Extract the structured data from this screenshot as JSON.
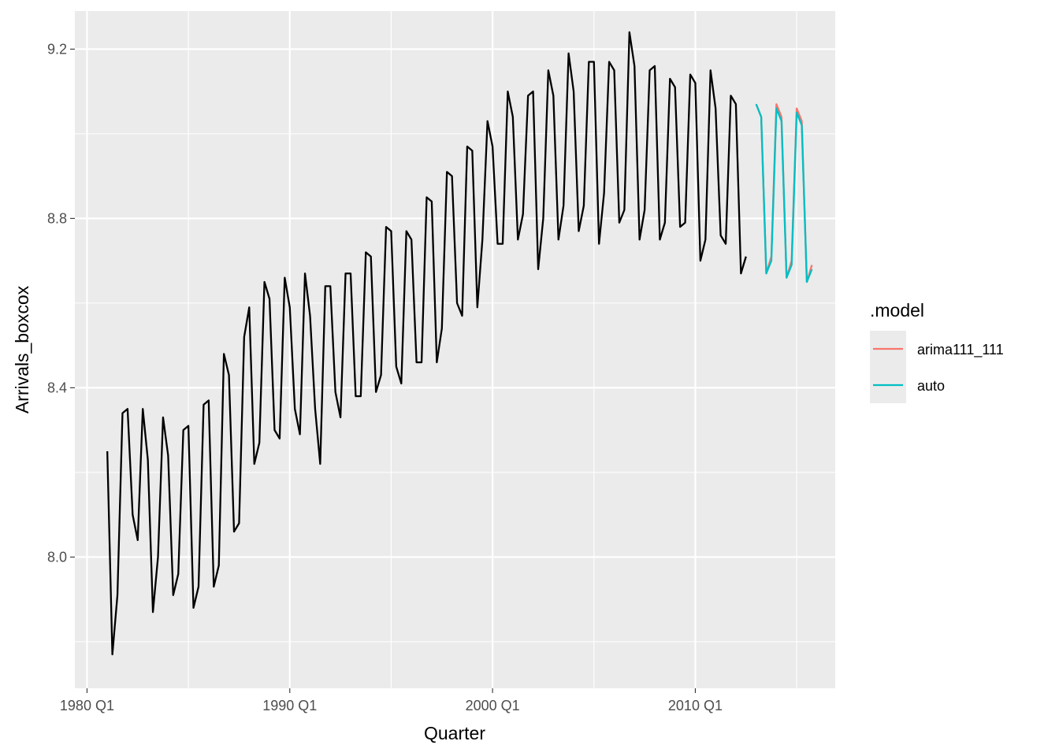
{
  "chart_data": {
    "type": "line",
    "title": "",
    "xlabel": "Quarter",
    "ylabel": "Arrivals_boxcox",
    "x_ticks": [
      {
        "label": "1980 Q1",
        "value": 1980.0
      },
      {
        "label": "1990 Q1",
        "value": 1990.0
      },
      {
        "label": "2000 Q1",
        "value": 2000.0
      },
      {
        "label": "2010 Q1",
        "value": 2010.0
      }
    ],
    "y_ticks": [
      {
        "label": "8.0",
        "value": 8.0
      },
      {
        "label": "8.4",
        "value": 8.4
      },
      {
        "label": "8.8",
        "value": 8.8
      },
      {
        "label": "9.2",
        "value": 9.2
      }
    ],
    "xlim": [
      1979.4,
      2016.9
    ],
    "ylim": [
      7.69,
      9.29
    ],
    "grid": true,
    "legend": {
      "title": ".model",
      "position": "right",
      "entries": [
        {
          "name": "arima111_111",
          "color": "#F8766D"
        },
        {
          "name": "auto",
          "color": "#00BFC4"
        }
      ]
    },
    "history": {
      "color": "#000000",
      "start": "1981 Q1",
      "x_start": 1981.0,
      "step": 0.25,
      "values": [
        8.25,
        7.77,
        7.91,
        8.34,
        8.35,
        8.1,
        8.04,
        8.35,
        8.23,
        7.87,
        8.0,
        8.33,
        8.24,
        7.91,
        7.96,
        8.3,
        8.31,
        7.88,
        7.93,
        8.36,
        8.37,
        7.93,
        7.98,
        8.48,
        8.43,
        8.06,
        8.08,
        8.52,
        8.59,
        8.22,
        8.27,
        8.65,
        8.61,
        8.3,
        8.28,
        8.66,
        8.59,
        8.35,
        8.29,
        8.67,
        8.57,
        8.35,
        8.22,
        8.64,
        8.64,
        8.39,
        8.33,
        8.67,
        8.67,
        8.38,
        8.38,
        8.72,
        8.71,
        8.39,
        8.43,
        8.78,
        8.77,
        8.45,
        8.41,
        8.77,
        8.75,
        8.46,
        8.46,
        8.85,
        8.84,
        8.46,
        8.54,
        8.91,
        8.9,
        8.6,
        8.57,
        8.97,
        8.96,
        8.59,
        8.75,
        9.03,
        8.97,
        8.74,
        8.74,
        9.1,
        9.04,
        8.75,
        8.81,
        9.09,
        9.1,
        8.68,
        8.8,
        9.15,
        9.09,
        8.75,
        8.83,
        9.19,
        9.1,
        8.77,
        8.83,
        9.17,
        9.17,
        8.74,
        8.86,
        9.17,
        9.15,
        8.79,
        8.82,
        9.24,
        9.16,
        8.75,
        8.82,
        9.15,
        9.16,
        8.75,
        8.79,
        9.13,
        9.11,
        8.78,
        8.79,
        9.14,
        9.12,
        8.7,
        8.75,
        9.15,
        9.06,
        8.76,
        8.74,
        9.09,
        9.07,
        8.67,
        8.71
      ]
    },
    "forecasts": [
      {
        "name": "arima111_111",
        "color": "#F8766D",
        "start": "2013 Q1",
        "x_start": 2013.0,
        "step": 0.25,
        "values": [
          9.07,
          9.04,
          8.67,
          8.71,
          9.07,
          9.04,
          8.66,
          8.7,
          9.06,
          9.03,
          8.65,
          8.69
        ]
      },
      {
        "name": "auto",
        "color": "#00BFC4",
        "start": "2013 Q1",
        "x_start": 2013.0,
        "step": 0.25,
        "values": [
          9.07,
          9.04,
          8.67,
          8.7,
          9.06,
          9.03,
          8.66,
          8.69,
          9.05,
          9.02,
          8.65,
          8.68
        ]
      }
    ]
  }
}
